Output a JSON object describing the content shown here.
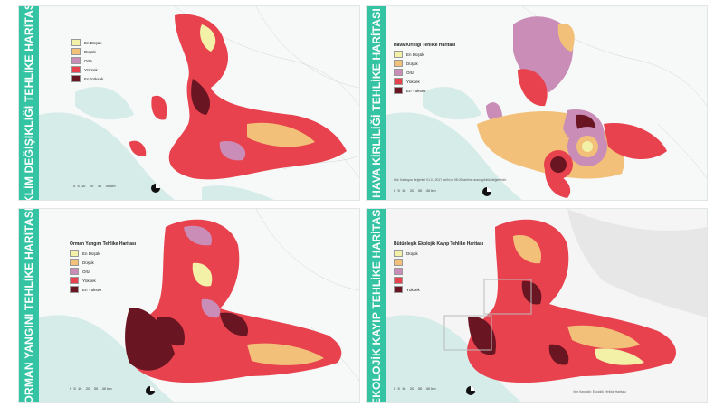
{
  "panels": [
    {
      "band_title": "İKLİM DEĞİŞİKLİĞİ TEHLİKE HARİTASI",
      "legend": {
        "title": "",
        "items": [
          "En Düşük",
          "Düşük",
          "Orta",
          "Yüksek",
          "En Yüksek"
        ]
      }
    },
    {
      "band_title": "HAVA KİRLİLİĞİ TEHLİKE HARİTASI",
      "legend": {
        "title": "Hava Kirliliği Tehlike Haritası",
        "items": [
          "En Düşük",
          "Düşük",
          "Orta",
          "Yüksek",
          "En Yüksek"
        ]
      },
      "note": "Not: Kalasyon değerleri 01.01.2017 tarihi ve 08.03 tarihine arası günlük değerlerdir."
    },
    {
      "band_title": "ORMAN YANGINI TEHLİKE HARİTASI",
      "legend": {
        "title": "Orman Yangını Tehlike Haritası",
        "items": [
          "En Düşük",
          "Düşük",
          "Orta",
          "Yüksek",
          "En Yüksek"
        ]
      }
    },
    {
      "band_title": "EKOLOJİK KAYIP TEHLİKE HARİTASI",
      "legend": {
        "title": "Bütünleşik Ekolojik Kayıp Tehlike Haritası",
        "items": [
          "Düşük",
          "",
          "",
          "",
          "Yüksek"
        ]
      },
      "credit": "Veri Kaynağı: Ekolojik Tehlike Haritası"
    }
  ],
  "scale_labels": [
    "0",
    "5",
    "10",
    "20",
    "30",
    "40 km"
  ],
  "colors": {
    "band": "#34c3a3",
    "en_dusuk": "#f3f0a8",
    "dusuk": "#f2c078",
    "orta": "#c98db7",
    "yuksek": "#e8424f",
    "en_yuksek": "#6a1522",
    "sea": "#d6ece8"
  }
}
